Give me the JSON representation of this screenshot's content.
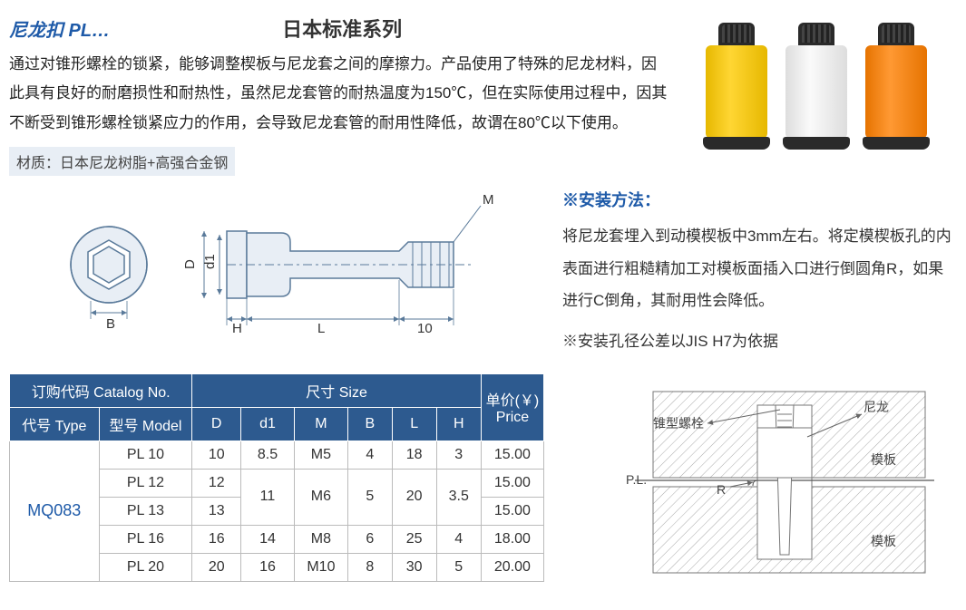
{
  "header": {
    "product_name": "尼龙扣  PL…",
    "series_title": "日本标准系列"
  },
  "description": "通过对锥形螺栓的锁紧，能够调整楔板与尼龙套之间的摩擦力。产品使用了特殊的尼龙材料，因此具有良好的耐磨损性和耐热性，虽然尼龙套管的耐热温度为150℃，但在实际使用过程中，因其不断受到锥形螺栓锁紧应力的作用，会导致尼龙套管的耐用性降低，故谓在80℃以下使用。",
  "material_label": "材质：日本尼龙树脂+高强合金钢",
  "product_colors": [
    "#f5c816",
    "#f0f0f0",
    "#f58d16"
  ],
  "tech_drawing": {
    "dim_labels": {
      "M": "M",
      "D": "D",
      "d1": "d1",
      "B": "B",
      "H": "H",
      "L": "L",
      "ten": "10"
    },
    "line_color": "#5a7a9a",
    "fill_color": "#e8eef5"
  },
  "install": {
    "title": "※安装方法：",
    "text": "将尼龙套埋入到动模楔板中3mm左右。将定模楔板孔的内表面进行粗糙精加工对模板面插入口进行倒圆角R，如果进行C倒角，其耐用性会降低。",
    "note": "※安装孔径公差以JIS H7为依据"
  },
  "install_diagram": {
    "labels": {
      "screw": "锥型螺栓",
      "nylon": "尼龙",
      "plate_top": "模板",
      "plate_bot": "模板",
      "PL": "P.L.",
      "R": "R"
    },
    "line_color": "#888",
    "hatch_color": "#aaa"
  },
  "table": {
    "header_bg": "#2d5a8f",
    "header_fg": "#ffffff",
    "catalog_header": "订购代码 Catalog No.",
    "size_header": "尺寸 Size",
    "price_header": "单价(￥) Price",
    "type_header": "代号 Type",
    "model_header": "型号 Model",
    "dim_headers": [
      "D",
      "d1",
      "M",
      "B",
      "L",
      "H"
    ],
    "type_code": "MQ083",
    "rows": [
      {
        "model": "PL 10",
        "D": "10",
        "d1": "8.5",
        "M": "M5",
        "B": "4",
        "L": "18",
        "H": "3",
        "price": "15.00"
      },
      {
        "model": "PL 12",
        "D": "12",
        "d1": "11",
        "M": "M6",
        "B": "5",
        "L": "20",
        "H": "3.5",
        "price": "15.00"
      },
      {
        "model": "PL 13",
        "D": "13",
        "d1": "11",
        "M": "M6",
        "B": "5",
        "L": "20",
        "H": "3.5",
        "price": "15.00"
      },
      {
        "model": "PL 16",
        "D": "16",
        "d1": "14",
        "M": "M8",
        "B": "6",
        "L": "25",
        "H": "4",
        "price": "18.00"
      },
      {
        "model": "PL 20",
        "D": "20",
        "d1": "16",
        "M": "M10",
        "B": "8",
        "L": "30",
        "H": "5",
        "price": "20.00"
      }
    ],
    "merges": [
      {
        "col": "d1",
        "start": 1,
        "span": 2
      },
      {
        "col": "M",
        "start": 1,
        "span": 2
      },
      {
        "col": "B",
        "start": 1,
        "span": 2
      },
      {
        "col": "L",
        "start": 1,
        "span": 2
      },
      {
        "col": "H",
        "start": 1,
        "span": 2
      }
    ],
    "col_widths": {
      "type": 100,
      "model": 105,
      "D": 55,
      "d1": 60,
      "M": 60,
      "B": 50,
      "L": 50,
      "H": 50,
      "price": 70
    }
  }
}
